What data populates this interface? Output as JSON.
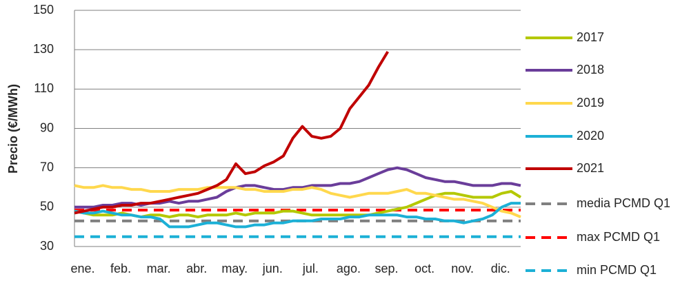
{
  "chart_data": {
    "type": "line",
    "y_label": "Precio (€/MWh)",
    "categories": [
      "ene.",
      null,
      null,
      null,
      "feb.",
      null,
      null,
      null,
      "mar.",
      null,
      null,
      null,
      "abr.",
      null,
      null,
      null,
      "may.",
      null,
      null,
      null,
      "jun.",
      null,
      null,
      null,
      "jul.",
      null,
      null,
      null,
      "ago.",
      null,
      null,
      null,
      "sep.",
      null,
      null,
      null,
      "oct.",
      null,
      null,
      null,
      "nov.",
      null,
      null,
      null,
      "dic.",
      null,
      null,
      null
    ],
    "ylim": [
      30,
      150
    ],
    "yticks": [
      30,
      50,
      70,
      90,
      110,
      130,
      150
    ],
    "grid": true,
    "legend": "right",
    "series": [
      {
        "name": "2017",
        "color": "#b4c800",
        "values": [
          48,
          47,
          46,
          46,
          46,
          47,
          46,
          45,
          46,
          46,
          45,
          46,
          46,
          45,
          46,
          46,
          46,
          47,
          46,
          47,
          47,
          47,
          48,
          48,
          47,
          46,
          46,
          46,
          46,
          46,
          46,
          46,
          47,
          48,
          49,
          50,
          52,
          54,
          56,
          57,
          57,
          56,
          55,
          55,
          55,
          57,
          58,
          55
        ]
      },
      {
        "name": "2018",
        "color": "#6a3d9a",
        "values": [
          50,
          50,
          50,
          51,
          51,
          52,
          52,
          51,
          52,
          52,
          53,
          52,
          53,
          53,
          54,
          55,
          58,
          60,
          61,
          61,
          60,
          59,
          59,
          60,
          60,
          61,
          61,
          61,
          62,
          62,
          63,
          65,
          67,
          69,
          70,
          69,
          67,
          65,
          64,
          63,
          63,
          62,
          61,
          61,
          61,
          62,
          62,
          61
        ]
      },
      {
        "name": "2019",
        "color": "#ffd84d",
        "values": [
          61,
          60,
          60,
          61,
          60,
          60,
          59,
          59,
          58,
          58,
          58,
          59,
          59,
          59,
          60,
          60,
          60,
          60,
          59,
          59,
          58,
          58,
          58,
          59,
          59,
          60,
          59,
          57,
          56,
          55,
          56,
          57,
          57,
          57,
          58,
          59,
          57,
          57,
          56,
          55,
          54,
          54,
          53,
          52,
          50,
          48,
          47,
          45
        ]
      },
      {
        "name": "2020",
        "color": "#1cb0d6",
        "values": [
          48,
          47,
          47,
          48,
          47,
          46,
          46,
          45,
          45,
          44,
          40,
          40,
          40,
          41,
          42,
          42,
          41,
          40,
          40,
          41,
          41,
          42,
          42,
          43,
          43,
          43,
          44,
          44,
          44,
          45,
          45,
          46,
          46,
          46,
          46,
          45,
          45,
          44,
          44,
          43,
          43,
          42,
          43,
          44,
          46,
          50,
          52,
          52
        ]
      },
      {
        "name": "2021",
        "color": "#c00000",
        "values": [
          47,
          48,
          49,
          50,
          50,
          51,
          51,
          52,
          52,
          53,
          54,
          55,
          56,
          57,
          59,
          61,
          64,
          72,
          67,
          68,
          71,
          73,
          76,
          85,
          91,
          86,
          85,
          86,
          90,
          100,
          106,
          112,
          121,
          129,
          null,
          null,
          null,
          null,
          null,
          null,
          null,
          null,
          null,
          null,
          null,
          null,
          null,
          null
        ]
      }
    ],
    "reference_lines": [
      {
        "name": "media PCMD Q1",
        "color": "#808080",
        "value": 43
      },
      {
        "name": "max PCMD Q1",
        "color": "#ff0000",
        "value": 48.5
      },
      {
        "name": "min PCMD Q1",
        "color": "#1cb0d6",
        "value": 35
      }
    ]
  }
}
